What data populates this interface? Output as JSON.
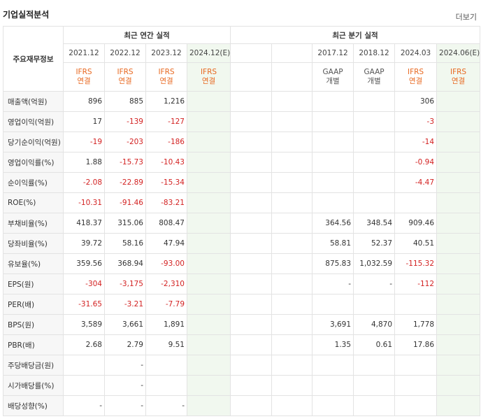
{
  "section_title": "기업실적분석",
  "more_label": "더보기",
  "row_header": "주요재무정보",
  "group_annual": "최근 연간 실적",
  "group_quarter": "최근 분기 실적",
  "periods": [
    {
      "label": "2021.12",
      "std": "IFRS",
      "sub": "연결"
    },
    {
      "label": "2022.12",
      "std": "IFRS",
      "sub": "연결"
    },
    {
      "label": "2023.12",
      "std": "IFRS",
      "sub": "연결"
    },
    {
      "label": "2024.12(E)",
      "std": "IFRS",
      "sub": "연결"
    },
    {
      "label": "",
      "std": "",
      "sub": ""
    },
    {
      "label": "",
      "std": "",
      "sub": ""
    },
    {
      "label": "2017.12",
      "std": "GAAP",
      "sub": "개별"
    },
    {
      "label": "2018.12",
      "std": "GAAP",
      "sub": "개별"
    },
    {
      "label": "2024.03",
      "std": "IFRS",
      "sub": "연결"
    },
    {
      "label": "2024.06(E)",
      "std": "IFRS",
      "sub": "연결"
    }
  ],
  "rows": [
    {
      "label": "매출액(억원)",
      "v": [
        "896",
        "885",
        "1,216",
        "",
        "",
        "",
        "",
        "",
        "306",
        ""
      ]
    },
    {
      "label": "영업이익(억원)",
      "v": [
        "17",
        "-139",
        "-127",
        "",
        "",
        "",
        "",
        "",
        "-3",
        ""
      ]
    },
    {
      "label": "당기순이익(억원)",
      "v": [
        "-19",
        "-203",
        "-186",
        "",
        "",
        "",
        "",
        "",
        "-14",
        ""
      ]
    },
    {
      "label": "영업이익률(%)",
      "v": [
        "1.88",
        "-15.73",
        "-10.43",
        "",
        "",
        "",
        "",
        "",
        "-0.94",
        ""
      ]
    },
    {
      "label": "순이익률(%)",
      "v": [
        "-2.08",
        "-22.89",
        "-15.34",
        "",
        "",
        "",
        "",
        "",
        "-4.47",
        ""
      ]
    },
    {
      "label": "ROE(%)",
      "v": [
        "-10.31",
        "-91.46",
        "-83.21",
        "",
        "",
        "",
        "",
        "",
        "",
        ""
      ]
    },
    {
      "label": "부채비율(%)",
      "v": [
        "418.37",
        "315.06",
        "808.47",
        "",
        "",
        "",
        "364.56",
        "348.54",
        "909.46",
        ""
      ]
    },
    {
      "label": "당좌비율(%)",
      "v": [
        "39.72",
        "58.16",
        "47.94",
        "",
        "",
        "",
        "58.81",
        "52.37",
        "40.51",
        ""
      ]
    },
    {
      "label": "유보율(%)",
      "v": [
        "359.56",
        "368.94",
        "-93.00",
        "",
        "",
        "",
        "875.83",
        "1,032.59",
        "-115.32",
        ""
      ]
    },
    {
      "label": "EPS(원)",
      "v": [
        "-304",
        "-3,175",
        "-2,310",
        "",
        "",
        "",
        "-",
        "-",
        "-112",
        ""
      ]
    },
    {
      "label": "PER(배)",
      "v": [
        "-31.65",
        "-3.21",
        "-7.79",
        "",
        "",
        "",
        "",
        "",
        "",
        ""
      ]
    },
    {
      "label": "BPS(원)",
      "v": [
        "3,589",
        "3,661",
        "1,891",
        "",
        "",
        "",
        "3,691",
        "4,870",
        "1,778",
        ""
      ]
    },
    {
      "label": "PBR(배)",
      "v": [
        "2.68",
        "2.79",
        "9.51",
        "",
        "",
        "",
        "1.35",
        "0.61",
        "17.86",
        ""
      ]
    },
    {
      "label": "주당배당금(원)",
      "v": [
        "",
        "-",
        "",
        "",
        "",
        "",
        "",
        "",
        "",
        ""
      ]
    },
    {
      "label": "시가배당률(%)",
      "v": [
        "",
        "-",
        "",
        "",
        "",
        "",
        "",
        "",
        "",
        ""
      ]
    },
    {
      "label": "배당성향(%)",
      "v": [
        "-",
        "-",
        "-",
        "",
        "",
        "",
        "",
        "",
        "",
        ""
      ]
    }
  ]
}
